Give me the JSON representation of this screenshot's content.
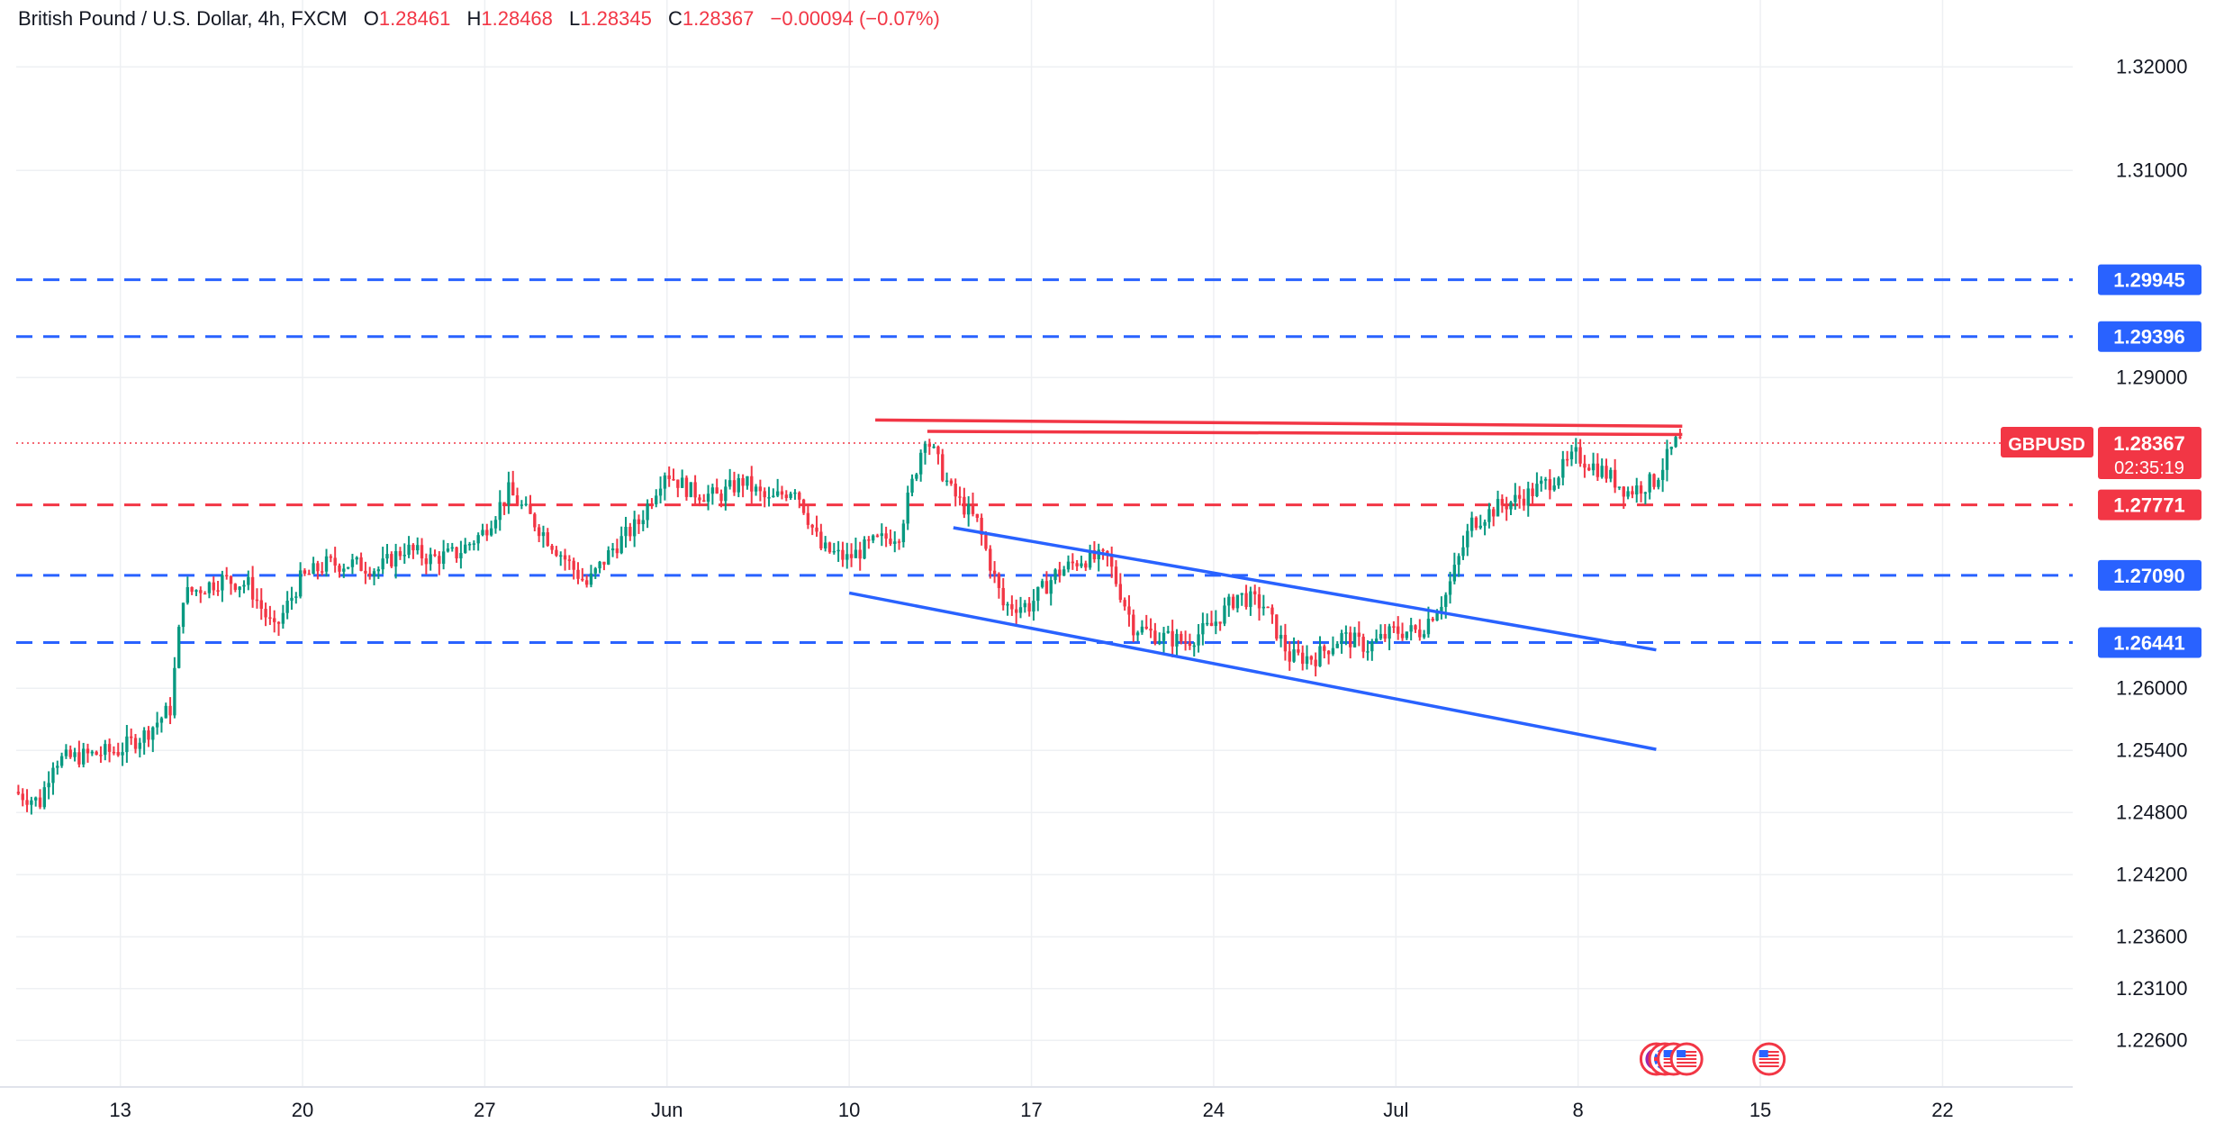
{
  "header": {
    "symbol_title": "British Pound / U.S. Dollar, 4h, FXCM",
    "o_label": "O",
    "o_value": "1.28461",
    "h_label": "H",
    "h_value": "1.28468",
    "l_label": "L",
    "l_value": "1.28345",
    "c_label": "C",
    "c_value": "1.28367",
    "change": "−0.00094 (−0.07%)"
  },
  "colors": {
    "up": "#089981",
    "down": "#f23645",
    "level_blue": "#2962ff",
    "level_red": "#f23645",
    "trend_blue": "#2962ff",
    "trend_red": "#f23645",
    "grid": "#eef0f3",
    "axis_text": "#131722"
  },
  "chart_data": {
    "type": "candlestick",
    "title": "British Pound / U.S. Dollar, 4h, FXCM",
    "ylim": [
      1.2215,
      1.3235
    ],
    "xlim": [
      "2024-05-09",
      "2024-07-27"
    ],
    "grid": true,
    "price_ticks": [
      "1.32000",
      "1.31000",
      "1.29000",
      "1.26000",
      "1.25400",
      "1.24800",
      "1.24200",
      "1.23600",
      "1.23100",
      "1.22600"
    ],
    "date_ticks": [
      {
        "date": "2024-05-13",
        "label": "13"
      },
      {
        "date": "2024-05-20",
        "label": "20"
      },
      {
        "date": "2024-05-27",
        "label": "27"
      },
      {
        "date": "2024-06-03",
        "label": "Jun"
      },
      {
        "date": "2024-06-10",
        "label": "10"
      },
      {
        "date": "2024-06-17",
        "label": "17"
      },
      {
        "date": "2024-06-24",
        "label": "24"
      },
      {
        "date": "2024-07-01",
        "label": "Jul"
      },
      {
        "date": "2024-07-08",
        "label": "8"
      },
      {
        "date": "2024-07-15",
        "label": "15"
      },
      {
        "date": "2024-07-22",
        "label": "22"
      }
    ],
    "levels": [
      {
        "price": 1.29945,
        "label": "1.29945",
        "color": "blue"
      },
      {
        "price": 1.29396,
        "label": "1.29396",
        "color": "blue"
      },
      {
        "price": 1.27771,
        "label": "1.27771",
        "color": "red"
      },
      {
        "price": 1.2709,
        "label": "1.27090",
        "color": "blue"
      },
      {
        "price": 1.26441,
        "label": "1.26441",
        "color": "blue"
      }
    ],
    "last_price": {
      "symbol": "GBPUSD",
      "price": 1.28367,
      "label": "1.28367",
      "countdown": "02:35:19"
    },
    "trendlines": [
      {
        "color": "red",
        "start": [
          "2024-06-11",
          1.2859
        ],
        "end": [
          "2024-07-12",
          1.2853
        ]
      },
      {
        "color": "red",
        "start": [
          "2024-06-13",
          1.2848
        ],
        "end": [
          "2024-07-12",
          1.2845
        ]
      },
      {
        "color": "blue",
        "start": [
          "2024-06-14",
          1.2755
        ],
        "end": [
          "2024-07-11",
          1.2637
        ]
      },
      {
        "color": "blue",
        "start": [
          "2024-06-10",
          1.2692
        ],
        "end": [
          "2024-07-11",
          1.2541
        ]
      }
    ],
    "path": [
      [
        "2024-05-09",
        1.25
      ],
      [
        "2024-05-10",
        1.249
      ],
      [
        "2024-05-10T12:00",
        1.253
      ],
      [
        "2024-05-13",
        1.254
      ],
      [
        "2024-05-14",
        1.2555
      ],
      [
        "2024-05-15",
        1.258
      ],
      [
        "2024-05-15T12:00",
        1.269
      ],
      [
        "2024-05-17",
        1.2705
      ],
      [
        "2024-05-18",
        1.27
      ],
      [
        "2024-05-19",
        1.2655
      ],
      [
        "2024-05-20",
        1.2705
      ],
      [
        "2024-05-21",
        1.272
      ],
      [
        "2024-05-22",
        1.272
      ],
      [
        "2024-05-23",
        1.2715
      ],
      [
        "2024-05-24",
        1.2735
      ],
      [
        "2024-05-25",
        1.2725
      ],
      [
        "2024-05-26",
        1.273
      ],
      [
        "2024-05-27",
        1.275
      ],
      [
        "2024-05-28",
        1.279
      ],
      [
        "2024-05-29",
        1.276
      ],
      [
        "2024-05-30",
        1.273
      ],
      [
        "2024-05-31",
        1.27
      ],
      [
        "2024-06-01",
        1.2735
      ],
      [
        "2024-06-02",
        1.276
      ],
      [
        "2024-06-03",
        1.281
      ],
      [
        "2024-06-04",
        1.279
      ],
      [
        "2024-06-05",
        1.2785
      ],
      [
        "2024-06-06",
        1.28
      ],
      [
        "2024-06-07",
        1.278
      ],
      [
        "2024-06-08",
        1.2795
      ],
      [
        "2024-06-09",
        1.2735
      ],
      [
        "2024-06-10",
        1.2725
      ],
      [
        "2024-06-11",
        1.274
      ],
      [
        "2024-06-12",
        1.275
      ],
      [
        "2024-06-13",
        1.2845
      ],
      [
        "2024-06-14",
        1.279
      ],
      [
        "2024-06-15",
        1.276
      ],
      [
        "2024-06-16",
        1.268
      ],
      [
        "2024-06-17",
        1.268
      ],
      [
        "2024-06-18",
        1.271
      ],
      [
        "2024-06-19",
        1.2725
      ],
      [
        "2024-06-20",
        1.2725
      ],
      [
        "2024-06-21",
        1.266
      ],
      [
        "2024-06-22",
        1.265
      ],
      [
        "2024-06-23",
        1.2645
      ],
      [
        "2024-06-24",
        1.266
      ],
      [
        "2024-06-25",
        1.269
      ],
      [
        "2024-06-26",
        1.268
      ],
      [
        "2024-06-27",
        1.263
      ],
      [
        "2024-06-28",
        1.263
      ],
      [
        "2024-06-29",
        1.265
      ],
      [
        "2024-06-30",
        1.264
      ],
      [
        "2024-07-01",
        1.2655
      ],
      [
        "2024-07-02",
        1.2655
      ],
      [
        "2024-07-03",
        1.269
      ],
      [
        "2024-07-04",
        1.276
      ],
      [
        "2024-07-05",
        1.2775
      ],
      [
        "2024-07-06",
        1.2785
      ],
      [
        "2024-07-07",
        1.28
      ],
      [
        "2024-07-08",
        1.2825
      ],
      [
        "2024-07-09",
        1.281
      ],
      [
        "2024-07-10",
        1.279
      ],
      [
        "2024-07-11",
        1.28
      ],
      [
        "2024-07-11T20:00",
        1.2837
      ]
    ],
    "events": [
      {
        "date": "2024-07-11",
        "kind": "event"
      },
      {
        "date": "2024-07-11T08:00",
        "kind": "gb"
      },
      {
        "date": "2024-07-11T16:00",
        "kind": "us"
      },
      {
        "date": "2024-07-12T04:00",
        "kind": "us"
      },
      {
        "date": "2024-07-15T08:00",
        "kind": "us"
      }
    ]
  }
}
